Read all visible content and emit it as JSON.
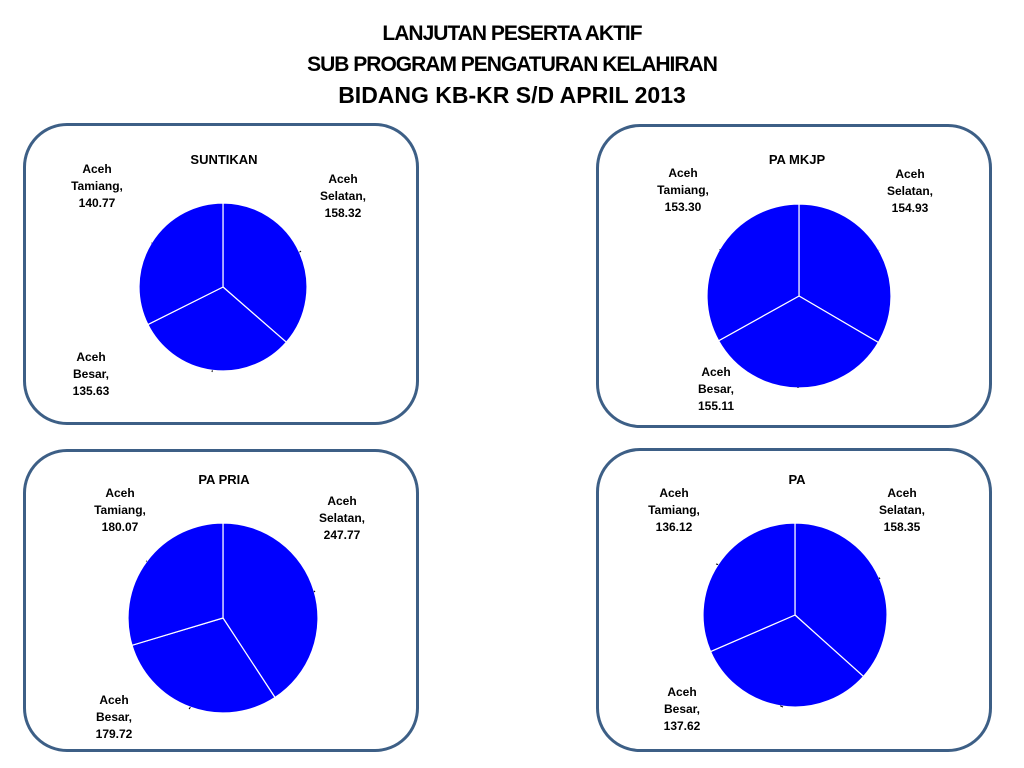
{
  "title": {
    "line1": "LANJUTAN  PESERTA  AKTIF",
    "line2": "SUB   PROGRAM  PENGATURAN   KELAHIRAN",
    "line3": "BIDANG KB-KR  S/D  APRIL 2013"
  },
  "colors": {
    "slice": "#0000ff",
    "border": "#3d5f86"
  },
  "chart_data": [
    {
      "type": "pie",
      "title": "SUNTIKAN",
      "categories": [
        "Aceh Selatan",
        "Aceh Besar",
        "Aceh Tamiang"
      ],
      "values": [
        158.32,
        135.63,
        140.77
      ],
      "labels": [
        [
          "Aceh",
          "Selatan,",
          "158.32"
        ],
        [
          "Aceh",
          "Besar,",
          "135.63"
        ],
        [
          "Aceh",
          "Tamiang,",
          "140.77"
        ]
      ]
    },
    {
      "type": "pie",
      "title": "PA  MKJP",
      "categories": [
        "Aceh Selatan",
        "Aceh Besar",
        "Aceh Tamiang"
      ],
      "values": [
        154.93,
        155.11,
        153.3
      ],
      "labels": [
        [
          "Aceh",
          "Selatan,",
          "154.93"
        ],
        [
          "Aceh",
          "Besar,",
          "155.11"
        ],
        [
          "Aceh",
          "Tamiang,",
          "153.30"
        ]
      ]
    },
    {
      "type": "pie",
      "title": "PA PRIA",
      "categories": [
        "Aceh Selatan",
        "Aceh Besar",
        "Aceh Tamiang"
      ],
      "values": [
        247.77,
        179.72,
        180.07
      ],
      "labels": [
        [
          "Aceh",
          "Selatan,",
          "247.77"
        ],
        [
          "Aceh",
          "Besar,",
          "179.72"
        ],
        [
          "Aceh",
          "Tamiang,",
          "180.07"
        ]
      ]
    },
    {
      "type": "pie",
      "title": "PA",
      "categories": [
        "Aceh Selatan",
        "Aceh Besar",
        "Aceh Tamiang"
      ],
      "values": [
        158.35,
        137.62,
        136.12
      ],
      "labels": [
        [
          "Aceh",
          "Selatan,",
          "158.35"
        ],
        [
          "Aceh",
          "Besar,",
          "137.62"
        ],
        [
          "Aceh",
          "Tamiang,",
          "136.12"
        ]
      ]
    }
  ]
}
